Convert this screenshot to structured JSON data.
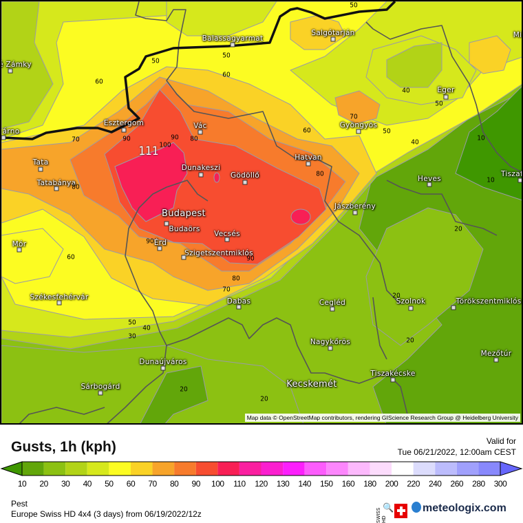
{
  "header": {
    "title": "Gusts, 1h (kph)",
    "valid_label": "Valid for",
    "valid_time": "Tue 06/21/2022, 12:00am CEST"
  },
  "legend": {
    "ticks": [
      "10",
      "20",
      "30",
      "40",
      "50",
      "60",
      "70",
      "80",
      "90",
      "100",
      "110",
      "120",
      "130",
      "140",
      "150",
      "160",
      "180",
      "200",
      "220",
      "240",
      "260",
      "280",
      "300"
    ],
    "colors": [
      "#62a60a",
      "#8cc112",
      "#b2d317",
      "#d6e81c",
      "#fcfc22",
      "#fad226",
      "#f7a42a",
      "#f77b2c",
      "#f74d30",
      "#f81f55",
      "#fa1fa0",
      "#fb1fcf",
      "#fc1ffc",
      "#fc5cfc",
      "#fc86fc",
      "#fcb9fc",
      "#fcdcfc",
      "#ffffff",
      "#dcdcfc",
      "#bcbcfc",
      "#a0a0fc",
      "#8888fc"
    ],
    "below_color": "#3f9700",
    "above_color": "#6666fc"
  },
  "footer": {
    "region": "Pest",
    "model": "Europe Swiss HD 4x4  (3 days)  from  06/19/2022/12z",
    "swiss_hd": "SWISS HD",
    "brand": "meteologix.com"
  },
  "map": {
    "attribution": "Map data © OpenStreetMap contributors, rendering GIScience Research Group @ Heidelberg University",
    "max_label": "111",
    "cities": [
      {
        "name": "Balassagyarmat"
      },
      {
        "name": "Salgótarján"
      },
      {
        "name": "Mi"
      },
      {
        "name": "é Zámky"
      },
      {
        "name": "Eger"
      },
      {
        "name": "Esztergom"
      },
      {
        "name": "Vác"
      },
      {
        "name": "Gyöngyös"
      },
      {
        "name": "árno"
      },
      {
        "name": "Tata"
      },
      {
        "name": "Hatvan"
      },
      {
        "name": "Dunakeszi"
      },
      {
        "name": "Gödöllő"
      },
      {
        "name": "Heves"
      },
      {
        "name": "Tiszaf"
      },
      {
        "name": "Tatabánya"
      },
      {
        "name": "Jászberény"
      },
      {
        "name": "Budapest"
      },
      {
        "name": "Budaörs"
      },
      {
        "name": "Vecsés"
      },
      {
        "name": "Mór"
      },
      {
        "name": "Érd"
      },
      {
        "name": "Szigetszentmiklós"
      },
      {
        "name": "Székesfehérvár"
      },
      {
        "name": "Dabas"
      },
      {
        "name": "Cegléd"
      },
      {
        "name": "Szolnok"
      },
      {
        "name": "Törökszentmiklós"
      },
      {
        "name": "Nagykőrös"
      },
      {
        "name": "Mezőtúr"
      },
      {
        "name": "Dunaújváros"
      },
      {
        "name": "Tiszakécske"
      },
      {
        "name": "Kecskemét"
      },
      {
        "name": "Sárbogárd"
      }
    ],
    "contour_labels": [
      "50",
      "50",
      "50",
      "60",
      "60",
      "40",
      "50",
      "70",
      "60",
      "50",
      "40",
      "10",
      "10",
      "90",
      "70",
      "90",
      "80",
      "100",
      "80",
      "80",
      "20",
      "90",
      "60",
      "90",
      "80",
      "70",
      "20",
      "50",
      "40",
      "30",
      "20",
      "20",
      "20"
    ]
  }
}
